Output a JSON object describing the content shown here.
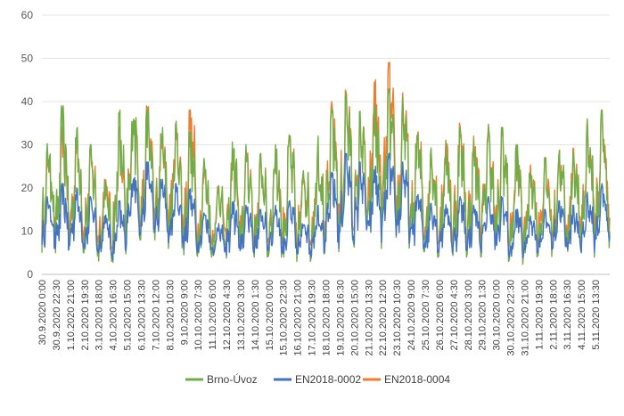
{
  "chart_data": {
    "type": "line",
    "title": "",
    "xlabel": "",
    "ylabel": "",
    "ylim": [
      0,
      60
    ],
    "yticks": [
      0,
      10,
      20,
      30,
      40,
      50,
      60
    ],
    "grid": true,
    "legend_position": "bottom",
    "x_categories": [
      "30.9.2020 0:00",
      "30.9.2020 22:30",
      "1.10.2020 21:00",
      "2.10.2020 19:30",
      "3.10.2020 18:00",
      "4.10.2020 16:30",
      "5.10.2020 15:00",
      "6.10.2020 13:30",
      "7.10.2020 12:00",
      "8.10.2020 10:30",
      "9.10.2020 9:00",
      "10.10.2020 7:30",
      "11.10.2020 6:00",
      "12.10.2020 4:30",
      "13.10.2020 3:00",
      "14.10.2020 1:30",
      "15.10.2020 0:00",
      "15.10.2020 22:30",
      "16.10.2020 21:00",
      "17.10.2020 19:30",
      "18.10.2020 18:00",
      "19.10.2020 16:30",
      "20.10.2020 15:00",
      "21.10.2020 13:30",
      "22.10.2020 12:00",
      "23.10.2020 10:30",
      "24.10.2020 9:00",
      "25.10.2020 7:30",
      "26.10.2020 6:00",
      "27.10.2020 4:30",
      "28.10.2020 3:00",
      "29.10.2020 1:30",
      "30.10.2020 0:00",
      "30.10.2020 22:30",
      "31.10.2020 21:00",
      "1.11.2020 19:30",
      "2.11.2020 18:00",
      "3.11.2020 16:30",
      "4.11.2020 15:00",
      "5.11.2020 13:30"
    ],
    "series": [
      {
        "name": "Brno-Úvoz",
        "color": "#70ad47",
        "daily_max": [
          31,
          39,
          34,
          30,
          22,
          38,
          41,
          38,
          34,
          36,
          33,
          27,
          22,
          31,
          30,
          28,
          30,
          33,
          26,
          32,
          39,
          42,
          38,
          40,
          43,
          41,
          33,
          30,
          31,
          34,
          31,
          35,
          34,
          30,
          26,
          27,
          29,
          29,
          36,
          38
        ],
        "daily_min": [
          5,
          4,
          5,
          4,
          3,
          2,
          8,
          8,
          6,
          6,
          4,
          4,
          3,
          3,
          4,
          4,
          4,
          3,
          3,
          4,
          5,
          7,
          6,
          6,
          8,
          6,
          5,
          4,
          4,
          4,
          4,
          5,
          3,
          2,
          4,
          4,
          5,
          4,
          4,
          6
        ]
      },
      {
        "name": "EN2018-0002",
        "color": "#4472c4",
        "daily_max": [
          18,
          21,
          20,
          18,
          14,
          17,
          24,
          26,
          22,
          21,
          20,
          15,
          12,
          17,
          16,
          15,
          16,
          17,
          13,
          16,
          24,
          28,
          26,
          25,
          28,
          26,
          19,
          17,
          17,
          18,
          16,
          18,
          18,
          15,
          14,
          15,
          17,
          16,
          19,
          21
        ],
        "daily_min": [
          6,
          5,
          6,
          5,
          4,
          3,
          9,
          9,
          7,
          7,
          5,
          5,
          4,
          4,
          5,
          5,
          5,
          4,
          4,
          5,
          6,
          8,
          7,
          7,
          9,
          7,
          6,
          5,
          5,
          5,
          5,
          6,
          4,
          3,
          5,
          5,
          6,
          5,
          5,
          7
        ]
      },
      {
        "name": "EN2018-0004",
        "color": "#ed7d31",
        "daily_max": [
          28,
          34,
          33,
          29,
          22,
          34,
          40,
          39,
          33,
          36,
          38,
          25,
          21,
          30,
          29,
          27,
          29,
          32,
          25,
          30,
          40,
          43,
          37,
          45,
          49,
          42,
          33,
          30,
          32,
          35,
          32,
          34,
          34,
          29,
          26,
          27,
          29,
          30,
          36,
          38
        ],
        "daily_min": [
          8,
          7,
          8,
          7,
          6,
          5,
          11,
          11,
          9,
          9,
          7,
          7,
          6,
          6,
          7,
          7,
          7,
          6,
          6,
          7,
          8,
          10,
          9,
          9,
          11,
          9,
          8,
          7,
          7,
          7,
          7,
          8,
          6,
          5,
          7,
          7,
          8,
          7,
          7,
          9
        ]
      }
    ]
  }
}
